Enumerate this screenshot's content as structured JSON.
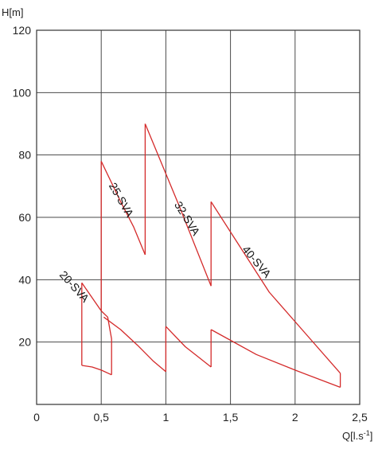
{
  "chart_data": {
    "type": "line",
    "ylabel": "H[m]",
    "xlabel": "Q[l.s",
    "xlabel_sup": "-1",
    "xlabel_close": "]",
    "xlim": [
      0,
      2.5
    ],
    "ylim": [
      0,
      120
    ],
    "xticks": [
      0,
      0.5,
      1,
      1.5,
      2,
      2.5
    ],
    "xtick_labels": [
      "0",
      "0,5",
      "1",
      "1,5",
      "2",
      "2,5"
    ],
    "yticks": [
      20,
      40,
      60,
      80,
      100,
      120
    ],
    "ytick_labels": [
      "20",
      "40",
      "60",
      "80",
      "100",
      "120"
    ],
    "grid": true,
    "curve_color": "#d42a2a",
    "series": [
      {
        "name": "20-SVA",
        "upper": [
          [
            0.35,
            39
          ],
          [
            0.5,
            30
          ]
        ],
        "lower": [
          [
            0.35,
            12.5
          ],
          [
            0.43,
            12
          ],
          [
            0.5,
            11
          ],
          [
            0.58,
            9.5
          ]
        ],
        "sides": [
          [
            [
              0.35,
              12.5
            ],
            [
              0.35,
              39
            ]
          ],
          [
            [
              0.58,
              9.5
            ],
            [
              0.58,
              21
            ],
            [
              0.55,
              28
            ],
            [
              0.5,
              30
            ]
          ]
        ]
      },
      {
        "name": "25-SVA",
        "upper": [
          [
            0.5,
            78
          ],
          [
            0.65,
            65
          ],
          [
            0.75,
            57
          ],
          [
            0.84,
            48
          ]
        ],
        "lower": [
          [
            0.52,
            28
          ],
          [
            0.65,
            24
          ],
          [
            0.78,
            19
          ],
          [
            0.9,
            14
          ],
          [
            1.0,
            10.5
          ]
        ],
        "sides": [
          [
            [
              0.5,
              30
            ],
            [
              0.5,
              78
            ]
          ],
          [
            [
              0.84,
              48
            ],
            [
              0.84,
              90
            ]
          ]
        ]
      },
      {
        "name": "32-SVA",
        "upper": [
          [
            0.84,
            90
          ],
          [
            1.1,
            64
          ],
          [
            1.35,
            38
          ]
        ],
        "lower": [
          [
            1.0,
            25
          ],
          [
            1.15,
            18.5
          ],
          [
            1.35,
            12
          ]
        ],
        "sides": [
          [
            [
              1.0,
              10.5
            ],
            [
              1.0,
              25
            ]
          ],
          [
            [
              1.35,
              38
            ],
            [
              1.35,
              65
            ]
          ]
        ]
      },
      {
        "name": "40-SVA",
        "upper": [
          [
            1.35,
            65
          ],
          [
            1.8,
            36
          ],
          [
            2.35,
            10
          ]
        ],
        "lower": [
          [
            1.35,
            24
          ],
          [
            1.7,
            16
          ],
          [
            2.0,
            11
          ],
          [
            2.35,
            5.5
          ]
        ],
        "sides": [
          [
            [
              1.35,
              12
            ],
            [
              1.35,
              24
            ]
          ],
          [
            [
              2.35,
              5.5
            ],
            [
              2.35,
              10
            ]
          ]
        ]
      }
    ],
    "labels": [
      {
        "text": "20-SVA",
        "x": 0.27,
        "y": 37,
        "angle": 48
      },
      {
        "text": "25-SVA",
        "x": 0.63,
        "y": 65,
        "angle": 60
      },
      {
        "text": "32-SVA",
        "x": 1.14,
        "y": 59,
        "angle": 58
      },
      {
        "text": "40-SVA",
        "x": 1.68,
        "y": 45,
        "angle": 50
      }
    ]
  }
}
